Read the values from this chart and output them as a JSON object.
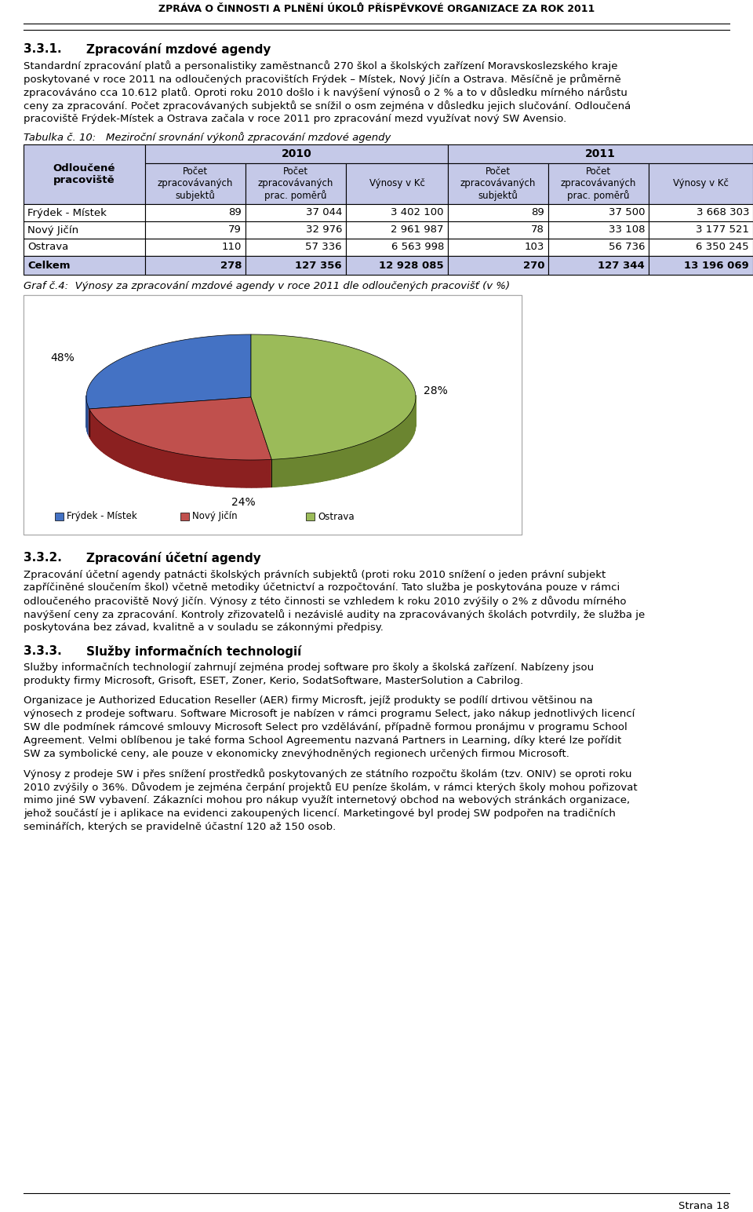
{
  "page_title": "ZPRÁVA O ČINNOSTI A PLNĚNÍ ÚKOLŮ PŘÍSPĚVKOVÉ ORGANIZACE ZA ROK 2011",
  "table_caption": "Tabulka č. 10:   Meziroční srovnání výkonů zpracování mzdové agendy",
  "table_rows": [
    [
      "Frýdek - Místek",
      "89",
      "37 044",
      "3 402 100",
      "89",
      "37 500",
      "3 668 303"
    ],
    [
      "Nový Jičín",
      "79",
      "32 976",
      "2 961 987",
      "78",
      "33 108",
      "3 177 521"
    ],
    [
      "Ostrava",
      "110",
      "57 336",
      "6 563 998",
      "103",
      "56 736",
      "6 350 245"
    ],
    [
      "Celkem",
      "278",
      "127 356",
      "12 928 085",
      "270",
      "127 344",
      "13 196 069"
    ]
  ],
  "graph_caption": "Graf č.4:  Výnosy za zpracování mzdové agendy v roce 2011 dle odloučených pracovišť (v %)",
  "pie_values": [
    28,
    24,
    48
  ],
  "pie_labels": [
    "28%",
    "24%",
    "48%"
  ],
  "pie_colors": [
    "#4472C4",
    "#C0504D",
    "#9BBB59"
  ],
  "pie_colors_dark": [
    "#2E5090",
    "#8B2020",
    "#6B8530"
  ],
  "pie_legend": [
    "Frýdek - Místek",
    "Nový Jičín",
    "Ostrava"
  ],
  "section2_title_num": "3.3.2.",
  "section2_title_text": "Zpracování účetní agendy",
  "section3_title_num": "3.3.3.",
  "section3_title_text": "Služby informačních technologií",
  "page_number": "Strana 18",
  "table_header_bg": "#C5C9E8",
  "body_font_size": 9.5,
  "section_title_font_size": 11
}
